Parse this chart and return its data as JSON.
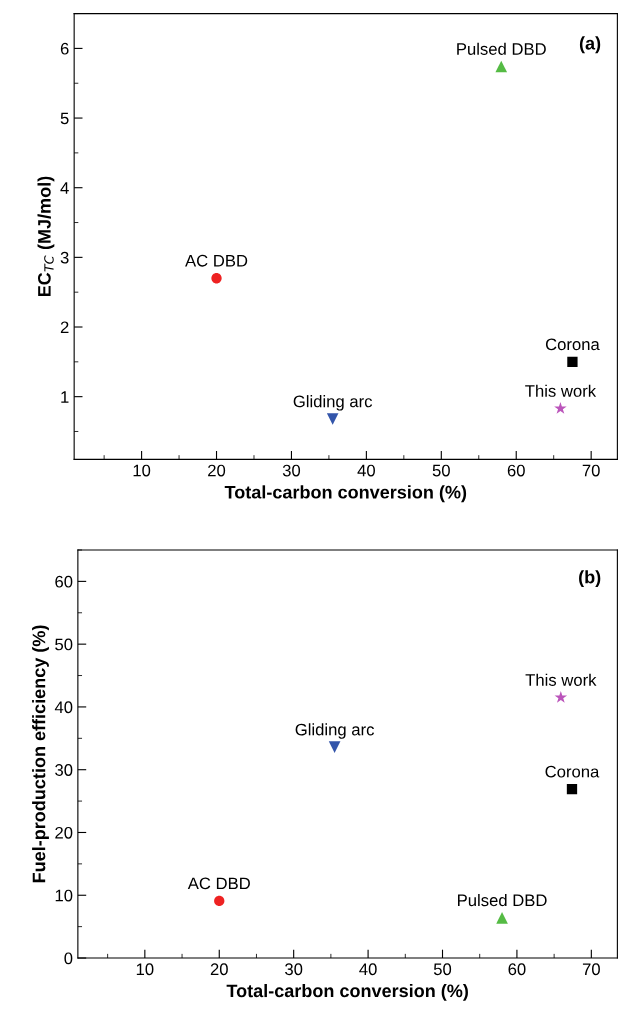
{
  "chart_data": [
    {
      "type": "scatter",
      "xlabel": "Total-carbon conversion (%)",
      "ylabel": "EC$_{TC}$ (MJ/mol)",
      "annotations": [
        "(a)"
      ],
      "xlim": [
        1,
        73.5
      ],
      "xticks": [
        10,
        20,
        30,
        40,
        50,
        60,
        70
      ],
      "ylim": [
        0.1,
        6.5
      ],
      "yticks": [
        1,
        2,
        3,
        4,
        5,
        6
      ],
      "grid": false,
      "legend": false,
      "series": [
        {
          "name": "AC DBD",
          "color": "#ee2222",
          "marker": "circle",
          "x": [
            20
          ],
          "values": [
            2.7
          ]
        },
        {
          "name": "Pulsed DBD",
          "color": "#55bb44",
          "marker": "triangle",
          "x": [
            58
          ],
          "values": [
            5.74
          ]
        },
        {
          "name": "Gliding arc",
          "color": "#3355aa",
          "marker": "triangle_down",
          "x": [
            35.5
          ],
          "values": [
            0.68
          ]
        },
        {
          "name": "Corona",
          "color": "#000000",
          "marker": "square",
          "x": [
            67.5
          ],
          "values": [
            1.5
          ]
        },
        {
          "name": "This work",
          "color": "#bb55bb",
          "marker": "star",
          "x": [
            65.9
          ],
          "values": [
            0.83
          ]
        }
      ]
    },
    {
      "type": "scatter",
      "xlabel": "Total-carbon conversion (%)",
      "ylabel": "Fuel-production efficiency (%)",
      "annotations": [
        "(b)"
      ],
      "xlim": [
        1,
        73.5
      ],
      "xticks": [
        10,
        20,
        30,
        40,
        50,
        60,
        70
      ],
      "ylim": [
        0,
        65
      ],
      "yticks": [
        0,
        10,
        20,
        30,
        40,
        50,
        60
      ],
      "grid": false,
      "legend": false,
      "series": [
        {
          "name": "AC DBD",
          "color": "#ee2222",
          "marker": "circle",
          "x": [
            20
          ],
          "values": [
            9.1
          ]
        },
        {
          "name": "Pulsed DBD",
          "color": "#55bb44",
          "marker": "triangle",
          "x": [
            58
          ],
          "values": [
            6.4
          ]
        },
        {
          "name": "Gliding arc",
          "color": "#3355aa",
          "marker": "triangle_down",
          "x": [
            35.5
          ],
          "values": [
            33.6
          ]
        },
        {
          "name": "Corona",
          "color": "#000000",
          "marker": "square",
          "x": [
            67.4
          ],
          "values": [
            26.9
          ]
        },
        {
          "name": "This work",
          "color": "#bb55bb",
          "marker": "star",
          "x": [
            65.9
          ],
          "values": [
            41.5
          ]
        }
      ]
    }
  ]
}
